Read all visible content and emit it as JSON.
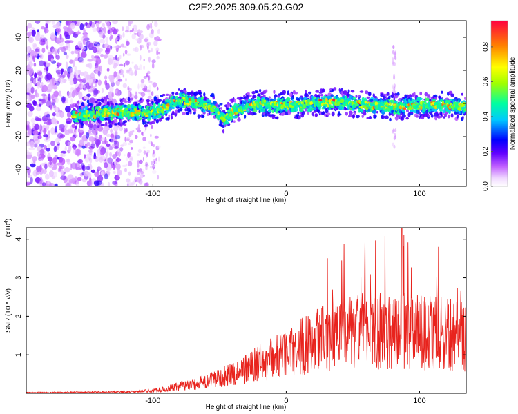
{
  "title": "C2E2.2025.309.05.20.G02",
  "colorbar": {
    "label": "Normalized spectral amplitude",
    "range": [
      0,
      0.95
    ],
    "ticks": [
      "0.0",
      "0.2",
      "0.4",
      "0.6",
      "0.8"
    ],
    "tick_values": [
      0.0,
      0.2,
      0.4,
      0.6,
      0.8
    ],
    "colors": [
      "#ffffff",
      "#f2d8ff",
      "#c060ff",
      "#8000ff",
      "#0000ff",
      "#00c0ff",
      "#00ffa0",
      "#a0ff00",
      "#ffff00",
      "#ff8000",
      "#ff0000"
    ]
  },
  "chart_data": [
    {
      "type": "heatmap",
      "xlabel": "Height of straight line (km)",
      "ylabel": "Frequency (Hz)",
      "xlim": [
        -195,
        135
      ],
      "ylim": [
        -50,
        50
      ],
      "x_ticks": [
        -100,
        0,
        100
      ],
      "x_tick_labels": [
        "-100",
        "0",
        "100"
      ],
      "y_ticks": [
        -40,
        -20,
        0,
        20,
        40
      ],
      "y_tick_labels": [
        "-40",
        "-20",
        "0",
        "20",
        "40"
      ],
      "ridge": {
        "description_points_x": [
          -155,
          -140,
          -120,
          -105,
          -95,
          -85,
          -78,
          -70,
          -60,
          -52,
          -48,
          -44,
          -40,
          -30,
          -20,
          -10,
          0,
          20,
          40,
          60,
          80,
          100,
          120,
          133
        ],
        "center_hz": [
          -7,
          -6,
          -5,
          -6,
          -4,
          0,
          2,
          1,
          -1,
          -4,
          -9,
          -8,
          -5,
          -2,
          0,
          -1,
          -1,
          0,
          1,
          -1,
          -2,
          -1,
          -1,
          -2
        ]
      }
    },
    {
      "type": "line",
      "xlabel": "Height of straight line (km)",
      "ylabel": "SNR (10 * v/v)",
      "y_multiplier_label": "(x10",
      "y_multiplier_exp": "4",
      "y_multiplier_close": ")",
      "xlim": [
        -195,
        135
      ],
      "ylim": [
        0,
        4.3
      ],
      "x_ticks": [
        -100,
        0,
        100
      ],
      "x_tick_labels": [
        "-100",
        "0",
        "100"
      ],
      "y_ticks": [
        1,
        2,
        3,
        4
      ],
      "y_tick_labels": [
        "1",
        "2",
        "3",
        "4"
      ],
      "color": "#e8231d",
      "envelope_x": [
        -195,
        -150,
        -110,
        -100,
        -90,
        -80,
        -70,
        -60,
        -50,
        -40,
        -30,
        -20,
        -10,
        0,
        10,
        20,
        30,
        40,
        50,
        60,
        70,
        80,
        90,
        100,
        110,
        120,
        135
      ],
      "envelope_y": [
        0.02,
        0.03,
        0.05,
        0.08,
        0.12,
        0.2,
        0.25,
        0.32,
        0.45,
        0.55,
        0.7,
        0.85,
        1.0,
        1.1,
        1.3,
        1.45,
        1.55,
        1.65,
        1.7,
        1.75,
        1.75,
        1.8,
        1.75,
        1.7,
        1.7,
        1.65,
        1.6
      ],
      "peak_y": 4.3
    }
  ]
}
